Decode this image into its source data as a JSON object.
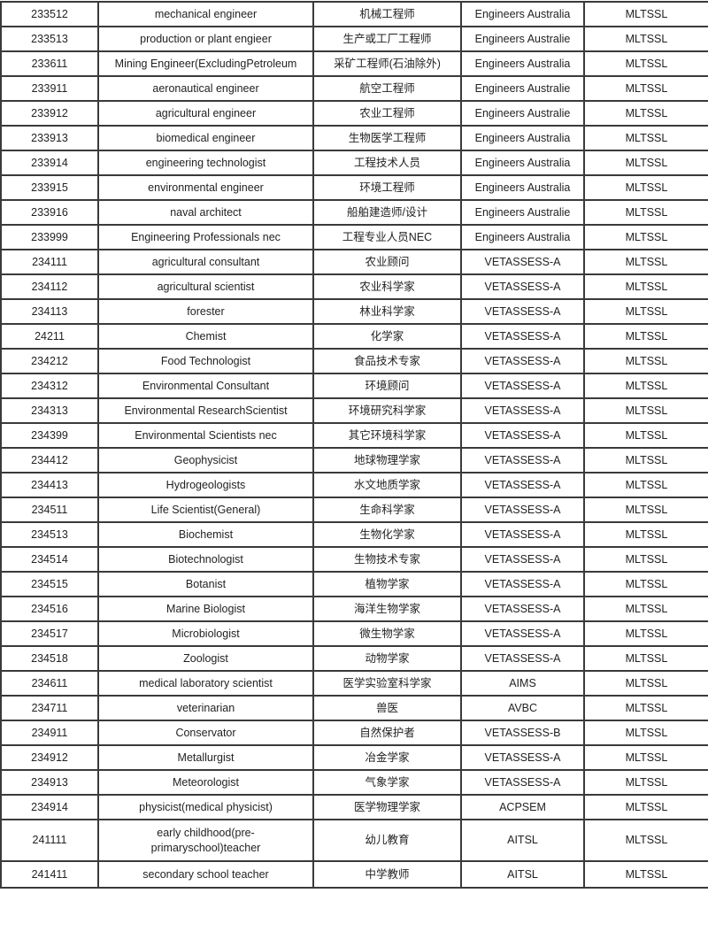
{
  "rows": [
    [
      "233512",
      "mechanical engineer",
      "机械工程师",
      "Engineers Australia",
      "MLTSSL"
    ],
    [
      "233513",
      "production or plant engieer",
      "生产或工厂工程师",
      "Engineers Australie",
      "MLTSSL"
    ],
    [
      "233611",
      "Mining Engineer(ExcludingPetroleum",
      "采矿工程师(石油除外)",
      "Engineers Australia",
      "MLTSSL"
    ],
    [
      "233911",
      "aeronautical engineer",
      "航空工程师",
      "Engineers Australie",
      "MLTSSL"
    ],
    [
      "233912",
      "agricultural engineer",
      "农业工程师",
      "Engineers Australie",
      "MLTSSL"
    ],
    [
      "233913",
      "biomedical engineer",
      "生物医学工程师",
      "Engineers Australia",
      "MLTSSL"
    ],
    [
      "233914",
      "engineering technologist",
      "工程技术人员",
      "Engineers Australia",
      "MLTSSL"
    ],
    [
      "233915",
      "environmental engineer",
      "环境工程师",
      "Engineers Australia",
      "MLTSSL"
    ],
    [
      "233916",
      "naval architect",
      "船舶建造师/设计",
      "Engineers Australie",
      "MLTSSL"
    ],
    [
      "233999",
      "Engineering Professionals nec",
      "工程专业人员NEC",
      "Engineers Australia",
      "MLTSSL"
    ],
    [
      "234111",
      "agricultural consultant",
      "农业顾问",
      "VETASSESS-A",
      "MLTSSL"
    ],
    [
      "234112",
      "agricultural scientist",
      "农业科学家",
      "VETASSESS-A",
      "MLTSSL"
    ],
    [
      "234113",
      "forester",
      "林业科学家",
      "VETASSESS-A",
      "MLTSSL"
    ],
    [
      "24211",
      "Chemist",
      "化学家",
      "VETASSESS-A",
      "MLTSSL"
    ],
    [
      "234212",
      "Food Technologist",
      "食品技术专家",
      "VETASSESS-A",
      "MLTSSL"
    ],
    [
      "234312",
      "Environmental Consultant",
      "环境顾问",
      "VETASSESS-A",
      "MLTSSL"
    ],
    [
      "234313",
      "Environmental ResearchScientist",
      "环境研究科学家",
      "VETASSESS-A",
      "MLTSSL"
    ],
    [
      "234399",
      "Environmental Scientists nec",
      "其它环境科学家",
      "VETASSESS-A",
      "MLTSSL"
    ],
    [
      "234412",
      "Geophysicist",
      "地球物理学家",
      "VETASSESS-A",
      "MLTSSL"
    ],
    [
      "234413",
      "Hydrogeologists",
      "水文地质学家",
      "VETASSESS-A",
      "MLTSSL"
    ],
    [
      "234511",
      "Life Scientist(General)",
      "生命科学家",
      "VETASSESS-A",
      "MLTSSL"
    ],
    [
      "234513",
      "Biochemist",
      "生物化学家",
      "VETASSESS-A",
      "MLTSSL"
    ],
    [
      "234514",
      "Biotechnologist",
      "生物技术专家",
      "VETASSESS-A",
      "MLTSSL"
    ],
    [
      "234515",
      "Botanist",
      "植物学家",
      "VETASSESS-A",
      "MLTSSL"
    ],
    [
      "234516",
      "Marine Biologist",
      "海洋生物学家",
      "VETASSESS-A",
      "MLTSSL"
    ],
    [
      "234517",
      "Microbiologist",
      "微生物学家",
      "VETASSESS-A",
      "MLTSSL"
    ],
    [
      "234518",
      "Zoologist",
      "动物学家",
      "VETASSESS-A",
      "MLTSSL"
    ],
    [
      "234611",
      "medical laboratory scientist",
      "医学实验室科学家",
      "AIMS",
      "MLTSSL"
    ],
    [
      "234711",
      "veterinarian",
      "兽医",
      "AVBC",
      "MLTSSL"
    ],
    [
      "234911",
      "Conservator",
      "自然保护者",
      "VETASSESS-B",
      "MLTSSL"
    ],
    [
      "234912",
      "Metallurgist",
      "冶金学家",
      "VETASSESS-A",
      "MLTSSL"
    ],
    [
      "234913",
      "Meteorologist",
      "气象学家",
      "VETASSESS-A",
      "MLTSSL"
    ],
    [
      "234914",
      "physicist(medical physicist)",
      "医学物理学家",
      "ACPSEM",
      "MLTSSL"
    ],
    [
      "241111",
      "early  childhood(pre-primaryschool)teacher",
      "幼儿教育",
      "AITSL",
      "MLTSSL"
    ],
    [
      "241411",
      "secondary school teacher",
      "中学教师",
      "AITSL",
      "MLTSSL"
    ]
  ]
}
